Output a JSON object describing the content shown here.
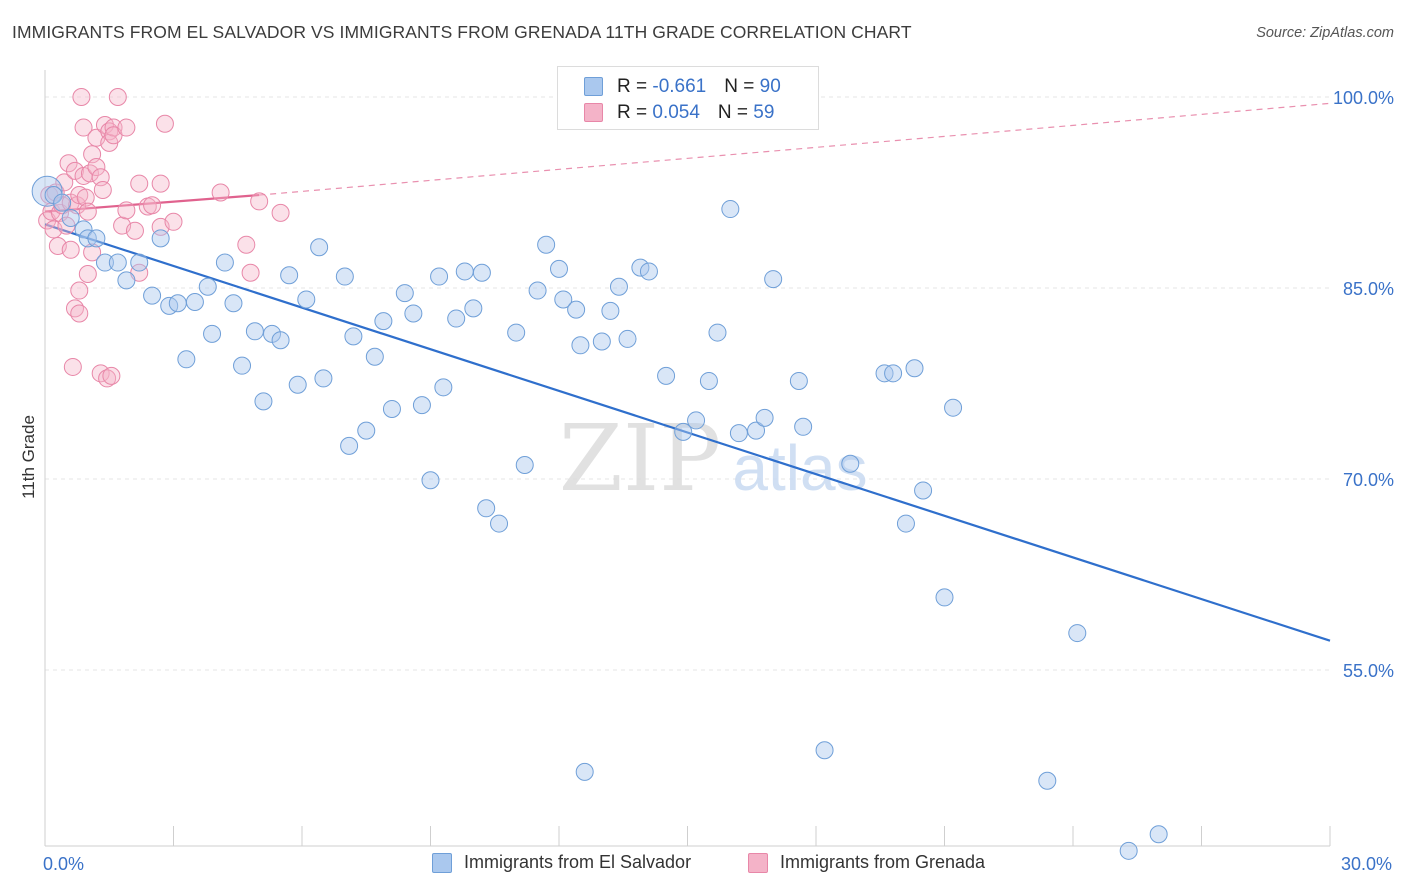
{
  "title": "IMMIGRANTS FROM EL SALVADOR VS IMMIGRANTS FROM GRENADA 11TH GRADE CORRELATION CHART",
  "source": "Source: ZipAtlas.com",
  "watermark": {
    "zip": "ZIP",
    "atlas": "atlas"
  },
  "legend": {
    "el_salvador": {
      "r_label": "R = ",
      "r_value": "-0.661",
      "n_label": "N = ",
      "n_value": "90"
    },
    "grenada": {
      "r_label": "R = ",
      "r_value": "0.054",
      "n_label": "N = ",
      "n_value": "59"
    }
  },
  "bottom_legend": {
    "el_salvador": "Immigrants from El Salvador",
    "grenada": "Immigrants from Grenada"
  },
  "colors": {
    "blue_fill": "#aac8ee",
    "blue_stroke": "#6f9fd8",
    "blue_line": "#2f6fcc",
    "pink_fill": "#f4b3c8",
    "pink_stroke": "#e887a8",
    "pink_line": "#e0628e",
    "axis_text": "#3a72c8",
    "grid": "#e6e6e6"
  },
  "chart_data": {
    "type": "scatter",
    "title": "IMMIGRANTS FROM EL SALVADOR VS IMMIGRANTS FROM GRENADA 11TH GRADE CORRELATION CHART",
    "xlabel": "",
    "ylabel": "11th Grade",
    "xlim": [
      0,
      30
    ],
    "ylim": [
      40,
      103
    ],
    "x_tick_labels": [
      {
        "x": 0,
        "label": "0.0%"
      },
      {
        "x": 30,
        "label": "30.0%"
      }
    ],
    "y_ticks": [
      {
        "y": 100,
        "label": "100.0%"
      },
      {
        "y": 85,
        "label": "85.0%"
      },
      {
        "y": 70,
        "label": "70.0%"
      },
      {
        "y": 55,
        "label": "55.0%"
      }
    ],
    "x_minor_ticks": [
      0,
      3,
      6,
      9,
      12,
      15,
      18,
      21,
      24,
      27,
      30
    ],
    "grid": "horizontal dashed",
    "legend_placement": "top-center",
    "series": [
      {
        "name": "Immigrants from El Salvador",
        "color": "#aac8ee",
        "trend": {
          "x": [
            0,
            30
          ],
          "y": [
            90.0,
            57.3
          ]
        },
        "points": [
          [
            0.05,
            92.6
          ],
          [
            0.2,
            92.3
          ],
          [
            0.4,
            91.7
          ],
          [
            0.6,
            90.5
          ],
          [
            0.9,
            89.6
          ],
          [
            1.0,
            88.9
          ],
          [
            1.2,
            88.9
          ],
          [
            1.4,
            87.0
          ],
          [
            1.7,
            87.0
          ],
          [
            1.9,
            85.6
          ],
          [
            2.2,
            87.0
          ],
          [
            2.5,
            84.4
          ],
          [
            2.7,
            88.9
          ],
          [
            2.9,
            83.6
          ],
          [
            3.1,
            83.8
          ],
          [
            3.3,
            79.4
          ],
          [
            3.5,
            83.9
          ],
          [
            3.8,
            85.1
          ],
          [
            3.9,
            81.4
          ],
          [
            4.2,
            87.0
          ],
          [
            4.4,
            83.8
          ],
          [
            4.6,
            78.9
          ],
          [
            4.9,
            81.6
          ],
          [
            5.1,
            76.1
          ],
          [
            5.3,
            81.4
          ],
          [
            5.5,
            80.9
          ],
          [
            5.7,
            86.0
          ],
          [
            5.9,
            77.4
          ],
          [
            6.1,
            84.1
          ],
          [
            6.4,
            88.2
          ],
          [
            6.5,
            77.9
          ],
          [
            7.0,
            85.9
          ],
          [
            7.2,
            81.2
          ],
          [
            7.1,
            72.6
          ],
          [
            7.5,
            73.8
          ],
          [
            7.7,
            79.6
          ],
          [
            7.9,
            82.4
          ],
          [
            8.1,
            75.5
          ],
          [
            8.4,
            84.6
          ],
          [
            8.6,
            83.0
          ],
          [
            8.8,
            75.8
          ],
          [
            9.0,
            69.9
          ],
          [
            9.2,
            85.9
          ],
          [
            9.3,
            77.2
          ],
          [
            9.6,
            82.6
          ],
          [
            9.8,
            86.3
          ],
          [
            10.0,
            83.4
          ],
          [
            10.2,
            86.2
          ],
          [
            10.3,
            67.7
          ],
          [
            10.6,
            66.5
          ],
          [
            11.0,
            81.5
          ],
          [
            11.2,
            71.1
          ],
          [
            11.5,
            84.8
          ],
          [
            11.7,
            88.4
          ],
          [
            12.0,
            86.5
          ],
          [
            12.1,
            84.1
          ],
          [
            12.4,
            83.3
          ],
          [
            12.5,
            80.5
          ],
          [
            12.6,
            47.0
          ],
          [
            13.0,
            80.8
          ],
          [
            13.2,
            83.2
          ],
          [
            13.4,
            85.1
          ],
          [
            13.6,
            81.0
          ],
          [
            13.9,
            86.6
          ],
          [
            14.1,
            86.3
          ],
          [
            14.5,
            78.1
          ],
          [
            14.9,
            73.7
          ],
          [
            15.2,
            74.6
          ],
          [
            15.5,
            77.7
          ],
          [
            15.7,
            81.5
          ],
          [
            16.0,
            91.2
          ],
          [
            16.2,
            73.6
          ],
          [
            16.6,
            73.8
          ],
          [
            16.8,
            74.8
          ],
          [
            17.0,
            85.7
          ],
          [
            17.6,
            77.7
          ],
          [
            17.7,
            74.1
          ],
          [
            18.2,
            48.7
          ],
          [
            18.8,
            71.2
          ],
          [
            19.6,
            78.3
          ],
          [
            19.8,
            78.3
          ],
          [
            20.1,
            66.5
          ],
          [
            20.3,
            78.7
          ],
          [
            20.5,
            69.1
          ],
          [
            21.0,
            60.7
          ],
          [
            21.2,
            75.6
          ],
          [
            23.4,
            46.3
          ],
          [
            24.1,
            57.9
          ],
          [
            25.3,
            40.8
          ],
          [
            26.0,
            42.1
          ]
        ]
      },
      {
        "name": "Immigrants from Grenada",
        "color": "#f4b3c8",
        "trend": {
          "x": [
            0,
            5
          ],
          "y": [
            91.0,
            92.3
          ]
        },
        "trend_extended": {
          "x": [
            5,
            30
          ],
          "y": [
            92.3,
            99.5
          ]
        },
        "points": [
          [
            0.05,
            90.3
          ],
          [
            0.1,
            92.3
          ],
          [
            0.15,
            91.0
          ],
          [
            0.2,
            89.6
          ],
          [
            0.25,
            92.5
          ],
          [
            0.3,
            88.3
          ],
          [
            0.35,
            90.9
          ],
          [
            0.4,
            91.5
          ],
          [
            0.45,
            93.3
          ],
          [
            0.5,
            89.9
          ],
          [
            0.55,
            94.8
          ],
          [
            0.6,
            91.7
          ],
          [
            0.6,
            88.0
          ],
          [
            0.65,
            78.8
          ],
          [
            0.7,
            94.2
          ],
          [
            0.7,
            83.4
          ],
          [
            0.75,
            91.5
          ],
          [
            0.8,
            92.3
          ],
          [
            0.8,
            84.8
          ],
          [
            0.8,
            83.0
          ],
          [
            0.85,
            100.0
          ],
          [
            0.9,
            97.6
          ],
          [
            0.9,
            93.8
          ],
          [
            0.95,
            92.1
          ],
          [
            1.0,
            86.1
          ],
          [
            1.0,
            91.0
          ],
          [
            1.05,
            94.0
          ],
          [
            1.1,
            95.5
          ],
          [
            1.1,
            87.8
          ],
          [
            1.2,
            94.5
          ],
          [
            1.2,
            96.8
          ],
          [
            1.3,
            93.7
          ],
          [
            1.3,
            78.3
          ],
          [
            1.35,
            92.7
          ],
          [
            1.4,
            97.8
          ],
          [
            1.45,
            77.9
          ],
          [
            1.5,
            97.3
          ],
          [
            1.5,
            96.4
          ],
          [
            1.55,
            78.1
          ],
          [
            1.6,
            97.6
          ],
          [
            1.6,
            97.0
          ],
          [
            1.7,
            100.0
          ],
          [
            1.8,
            89.9
          ],
          [
            1.9,
            91.1
          ],
          [
            1.9,
            97.6
          ],
          [
            2.1,
            89.5
          ],
          [
            2.2,
            86.2
          ],
          [
            2.2,
            93.2
          ],
          [
            2.4,
            91.4
          ],
          [
            2.5,
            91.5
          ],
          [
            2.7,
            93.2
          ],
          [
            2.7,
            89.8
          ],
          [
            2.8,
            97.9
          ],
          [
            3.0,
            90.2
          ],
          [
            4.1,
            92.5
          ],
          [
            4.7,
            88.4
          ],
          [
            4.8,
            86.2
          ],
          [
            5.0,
            91.8
          ],
          [
            5.5,
            90.9
          ]
        ]
      }
    ]
  }
}
